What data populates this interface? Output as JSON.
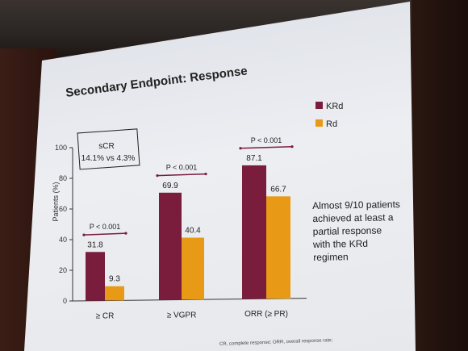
{
  "slide": {
    "title": "Secondary Endpoint: Response",
    "note": "Almost 9/10 patients achieved at least a partial response with the KRd regimen",
    "footnote": "CR, complete response; ORR, overall response rate;",
    "scr_box": {
      "title": "sCR",
      "text": "14.1% vs 4.3%"
    }
  },
  "chart_data": {
    "type": "bar",
    "categories": [
      "≥ CR",
      "≥ VGPR",
      "ORR (≥ PR)"
    ],
    "series": [
      {
        "name": "KRd",
        "color": "#7a1d3c",
        "values": [
          31.8,
          69.9,
          87.1
        ]
      },
      {
        "name": "Rd",
        "color": "#e89a16",
        "values": [
          9.3,
          40.4,
          66.7
        ]
      }
    ],
    "value_labels": [
      [
        "31.8",
        "69.9",
        "87.1"
      ],
      [
        "9.3",
        "40.4",
        "66.7"
      ]
    ],
    "ylabel": "Patients (%)",
    "ylim": [
      0,
      100
    ],
    "yticks": [
      "0",
      "20",
      "40",
      "60",
      "80",
      "100"
    ],
    "pvalues": [
      "P < 0.001",
      "P < 0.001",
      "P < 0.001"
    ],
    "legend_position": "top-right",
    "grid": false
  }
}
